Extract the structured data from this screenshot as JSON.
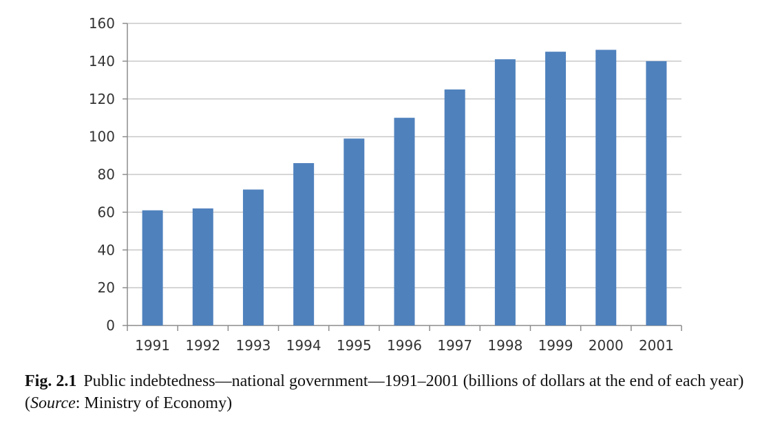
{
  "chart_data": {
    "type": "bar",
    "categories": [
      "1991",
      "1992",
      "1993",
      "1994",
      "1995",
      "1996",
      "1997",
      "1998",
      "1999",
      "2000",
      "2001"
    ],
    "values": [
      61,
      62,
      72,
      86,
      99,
      110,
      125,
      141,
      145,
      146,
      140
    ],
    "ylim": [
      0,
      160
    ],
    "yticks": [
      0,
      20,
      40,
      60,
      80,
      100,
      120,
      140,
      160
    ],
    "grid": true,
    "bar_color": "#4f81bd",
    "grid_color": "#c8c8c8"
  },
  "caption": {
    "figure_number": "Fig. 2.1",
    "text_before_italic": "Public indebtedness—national government—1991–2001 (billions of dollars at the end of each year) (",
    "italic": "Source",
    "text_after_italic": ": Ministry of Economy)"
  }
}
